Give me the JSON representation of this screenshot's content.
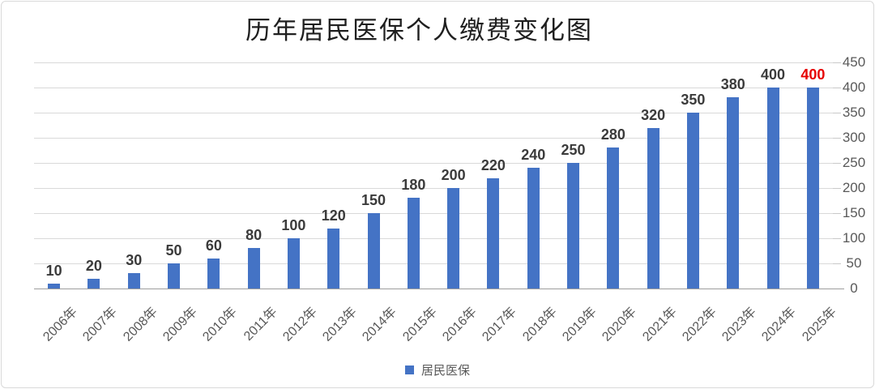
{
  "title": "历年居民医保个人缴费变化图",
  "legend": {
    "items": [
      {
        "label": "居民医保",
        "color": "#4473c5"
      }
    ]
  },
  "chart_data": {
    "type": "bar",
    "title": "历年居民医保个人缴费变化图",
    "categories": [
      "2006年",
      "2007年",
      "2008年",
      "2009年",
      "2010年",
      "2011年",
      "2012年",
      "2013年",
      "2014年",
      "2015年",
      "2016年",
      "2017年",
      "2018年",
      "2019年",
      "2020年",
      "2021年",
      "2022年",
      "2023年",
      "2024年",
      "2025年"
    ],
    "series": [
      {
        "name": "居民医保",
        "values": [
          10,
          20,
          30,
          50,
          60,
          80,
          100,
          120,
          150,
          180,
          200,
          220,
          240,
          250,
          280,
          320,
          350,
          380,
          400,
          400
        ]
      }
    ],
    "data_labels": [
      10,
      20,
      30,
      50,
      60,
      80,
      100,
      120,
      150,
      180,
      200,
      220,
      240,
      250,
      280,
      320,
      350,
      380,
      400,
      400
    ],
    "highlight": {
      "category_index": 19,
      "label_value": 400,
      "label_color": "#e60000",
      "note": "2025年 data label rendered in red"
    },
    "xlabel": "",
    "ylabel": "",
    "ylim": [
      0,
      450
    ],
    "yticks": [
      0,
      50,
      100,
      150,
      200,
      250,
      300,
      350,
      400,
      450
    ],
    "y_axis_side": "right",
    "grid": true,
    "legend_position": "bottom",
    "bar_color": "#4473c5",
    "label_color": "#3b3b3b",
    "axis_text_color": "#595959",
    "gridline_color": "#d9d9d9"
  }
}
